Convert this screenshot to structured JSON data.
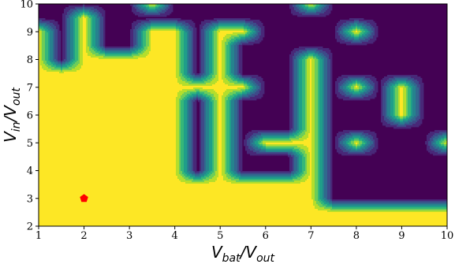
{
  "chart_data": {
    "type": "heatmap",
    "subtype": "filled-contour",
    "title": "",
    "xlabel": {
      "main": "V",
      "sub": "bat",
      "sep": "/V",
      "sub2": "out"
    },
    "ylabel": {
      "main": "V",
      "sub": "in",
      "sep": "/V",
      "sub2": "out"
    },
    "xlim": [
      1,
      10
    ],
    "ylim": [
      2,
      10
    ],
    "x_ticks": [
      "1",
      "2",
      "3",
      "4",
      "5",
      "6",
      "7",
      "8",
      "9",
      "10"
    ],
    "y_ticks": [
      "2",
      "3",
      "4",
      "5",
      "6",
      "7",
      "8",
      "9",
      "10"
    ],
    "grid": {
      "nx": 19,
      "ny": 17,
      "x_step": 0.5,
      "y_step": 0.5
    },
    "colormap": "viridis",
    "colors": {
      "high": "#fde725",
      "low": "#440154",
      "marker": "#ff0000"
    },
    "boundary_top_y": [
      9,
      7.5,
      9,
      6.5,
      8,
      5.5,
      3.5,
      3.5,
      3.5,
      3.5,
      3.5,
      3.5,
      2.5,
      2.5,
      2.5,
      2.5,
      2.5,
      2.5,
      2.5
    ],
    "bright_columns": [
      {
        "x": 2,
        "y_top": 9.5
      },
      {
        "x": 2.5,
        "y_top": 8
      },
      {
        "x": 3.5,
        "y_top": 9
      },
      {
        "x": 4,
        "y_top": 9
      },
      {
        "x": 5,
        "y_top": 9
      },
      {
        "x": 7,
        "y_top": 8
      },
      {
        "x": 9,
        "y_top": 7,
        "y_bottom": 6
      }
    ],
    "bright_points": [
      [
        2.5,
        5
      ],
      [
        3,
        6
      ],
      [
        3.5,
        4
      ],
      [
        3.5,
        10
      ],
      [
        4.5,
        7
      ],
      [
        5.5,
        9
      ],
      [
        5.5,
        7
      ],
      [
        6,
        5
      ],
      [
        6.5,
        5
      ],
      [
        7,
        10
      ],
      [
        8,
        9
      ],
      [
        8,
        7
      ],
      [
        8,
        5
      ],
      [
        10,
        5
      ]
    ],
    "marker": {
      "x": 2,
      "y": 3,
      "shape": "pentagon"
    }
  }
}
